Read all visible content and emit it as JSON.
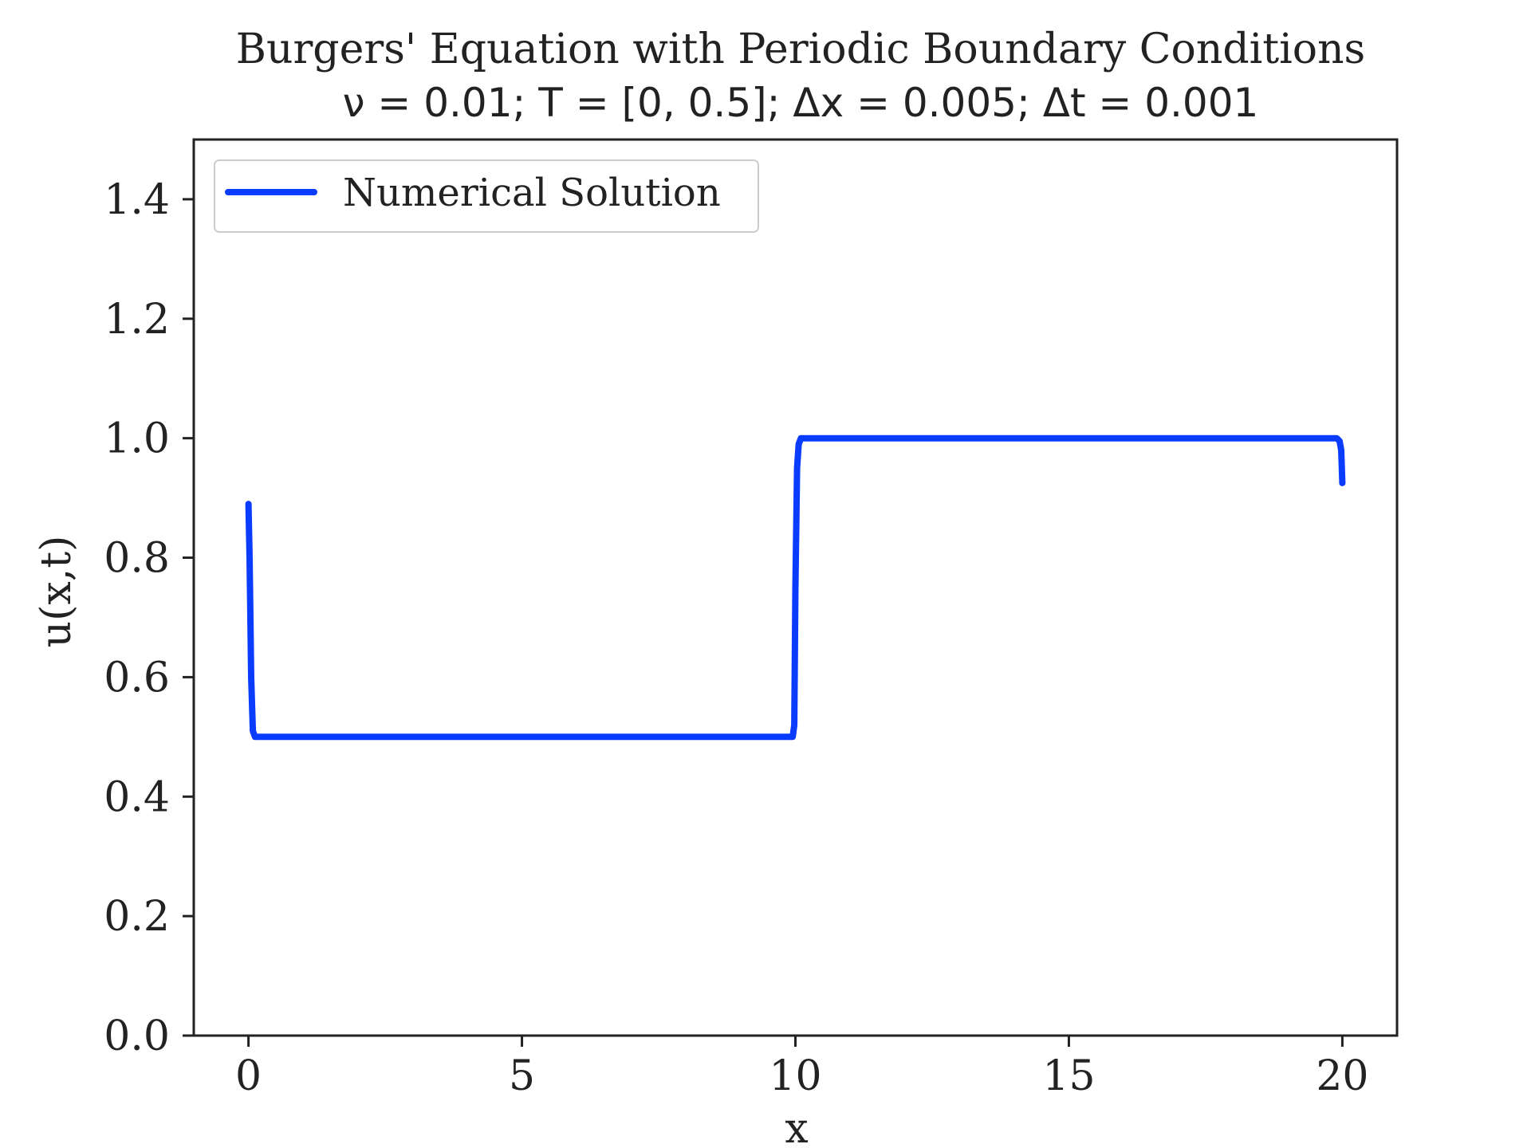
{
  "chart_data": {
    "type": "line",
    "title": "Burgers' Equation with Periodic Boundary Conditions",
    "subtitle": "ν = 0.01; T = [0, 0.5]; Δx = 0.005; Δt = 0.001",
    "xlabel": "x",
    "ylabel": "u(x,t)",
    "xlim": [
      -1,
      21
    ],
    "ylim": [
      0,
      1.5
    ],
    "xticks": [
      0,
      5,
      10,
      15,
      20
    ],
    "xtick_labels": [
      "0",
      "5",
      "10",
      "15",
      "20"
    ],
    "yticks": [
      0.0,
      0.2,
      0.4,
      0.6,
      0.8,
      1.0,
      1.2,
      1.4
    ],
    "ytick_labels": [
      "0.0",
      "0.2",
      "0.4",
      "0.6",
      "0.8",
      "1.0",
      "1.2",
      "1.4"
    ],
    "grid": false,
    "legend_position": "top-left",
    "series": [
      {
        "name": "Numerical Solution",
        "color": "#0a3cff",
        "x": [
          0.0,
          0.02,
          0.05,
          0.08,
          0.12,
          0.2,
          1,
          2,
          3,
          4,
          5,
          6,
          7,
          8,
          9,
          9.9,
          9.95,
          9.98,
          10.0,
          10.03,
          10.06,
          10.1,
          10.15,
          10.2,
          11,
          12,
          13,
          14,
          15,
          16,
          17,
          18,
          19,
          19.9,
          19.95,
          19.98,
          20.0
        ],
        "y": [
          0.89,
          0.8,
          0.6,
          0.51,
          0.5,
          0.5,
          0.5,
          0.5,
          0.5,
          0.5,
          0.5,
          0.5,
          0.5,
          0.5,
          0.5,
          0.5,
          0.5,
          0.52,
          0.75,
          0.95,
          0.99,
          1.0,
          1.0,
          1.0,
          1.0,
          1.0,
          1.0,
          1.0,
          1.0,
          1.0,
          1.0,
          1.0,
          1.0,
          1.0,
          0.995,
          0.98,
          0.925
        ]
      }
    ]
  }
}
